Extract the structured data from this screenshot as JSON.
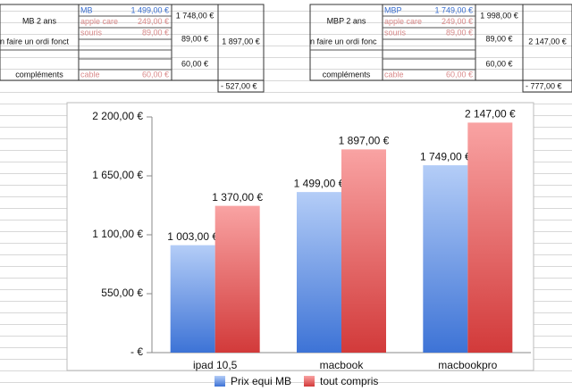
{
  "sheet": {
    "blocks": [
      {
        "label": "MB 2 ans",
        "model": "MB",
        "model_price": "1 499,00 €",
        "care": "apple care",
        "care_price": "249,00 €",
        "mouse": "souris",
        "mouse_price": "89,00 €",
        "subtotal": "1 748,00 €",
        "purpose": "n faire un ordi fonct",
        "purpose_price": "89,00 €",
        "total": "1 897,00 €",
        "extra_price": "60,00 €",
        "extras": "compléments",
        "cable": "cable",
        "cable_price": "60,00 €",
        "difference": "- 527,00 €"
      },
      {
        "label": "MBP 2 ans",
        "model": "MBP",
        "model_price": "1 749,00 €",
        "care": "apple care",
        "care_price": "249,00 €",
        "mouse": "souris",
        "mouse_price": "89,00 €",
        "subtotal": "1 998,00 €",
        "purpose": "n faire un ordi fonc",
        "purpose_price": "89,00 €",
        "total": "2 147,00 €",
        "extra_price": "60,00 €",
        "extras": "compléments",
        "cable": "cable",
        "cable_price": "60,00 €",
        "difference": "- 777,00 €"
      }
    ]
  },
  "chart_data": {
    "type": "bar",
    "categories": [
      "ipad 10,5",
      "macbook",
      "macbookpro"
    ],
    "series": [
      {
        "name": "Prix equi MB",
        "color": "#5b8fe0",
        "values": [
          1003,
          1499,
          1749
        ],
        "value_labels": [
          "1 003,00 €",
          "1 499,00 €",
          "1 749,00 €"
        ]
      },
      {
        "name": "tout compris",
        "color": "#e85a5a",
        "values": [
          1370,
          1897,
          2147
        ],
        "value_labels": [
          "1 370,00 €",
          "1 897,00 €",
          "2 147,00 €"
        ]
      }
    ],
    "ylim": [
      0,
      2200
    ],
    "yticks": [
      {
        "value": 0,
        "label": "-   €"
      },
      {
        "value": 550,
        "label": "550,00 €"
      },
      {
        "value": 1100,
        "label": "1 100,00 €"
      },
      {
        "value": 1650,
        "label": "1 650,00 €"
      },
      {
        "value": 2200,
        "label": "2 200,00 €"
      }
    ],
    "grid": false,
    "legend": "bottom"
  }
}
